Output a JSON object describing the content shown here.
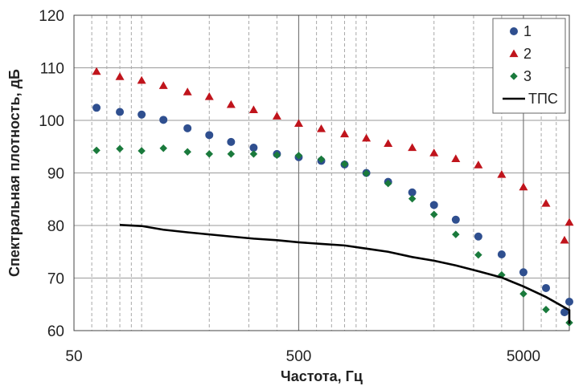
{
  "chart_data": {
    "type": "scatter",
    "title": "",
    "xlabel": "Частота, Гц",
    "ylabel": "Спектральная плотность, дБ",
    "xscale": "log",
    "xlim": [
      50,
      8000
    ],
    "ylim": [
      60,
      120
    ],
    "xticks": [
      50,
      500,
      5000
    ],
    "xtick_labels": [
      "50",
      "500",
      "5000"
    ],
    "yticks": [
      60,
      70,
      80,
      90,
      100,
      110,
      120
    ],
    "grid": "major and minor vertical (dashed minor), horizontal major",
    "legend_position": "top-right",
    "x": [
      63,
      80,
      100,
      125,
      160,
      200,
      250,
      315,
      400,
      500,
      630,
      800,
      1000,
      1250,
      1600,
      2000,
      2500,
      3150,
      4000,
      5000,
      6300,
      8000
    ],
    "series": [
      {
        "name": "1",
        "marker": "circle",
        "color": "#2f4f8f",
        "x": [
          63,
          80,
          100,
          125,
          160,
          200,
          250,
          315,
          400,
          500,
          630,
          800,
          1000,
          1250,
          1600,
          2000,
          2500,
          3150,
          4000,
          5000,
          6300,
          8000,
          10000
        ],
        "values": [
          102.4,
          101.6,
          101.1,
          100.1,
          98.5,
          97.2,
          95.9,
          94.8,
          93.6,
          93.0,
          92.3,
          91.6,
          90.0,
          88.3,
          86.3,
          83.9,
          81.1,
          77.9,
          74.5,
          71.1,
          68.1,
          65.5,
          63.5
        ]
      },
      {
        "name": "2",
        "marker": "triangle",
        "color": "#c0141c",
        "x": [
          63,
          80,
          100,
          125,
          160,
          200,
          250,
          315,
          400,
          500,
          630,
          800,
          1000,
          1250,
          1600,
          2000,
          2500,
          3150,
          4000,
          5000,
          6300,
          8000,
          10000
        ],
        "values": [
          109.3,
          108.3,
          107.6,
          106.6,
          105.4,
          104.5,
          103.0,
          102.0,
          100.8,
          99.4,
          98.4,
          97.4,
          96.6,
          95.6,
          94.8,
          93.8,
          92.7,
          91.5,
          89.7,
          87.3,
          84.2,
          80.6,
          77.2
        ]
      },
      {
        "name": "3",
        "marker": "diamond",
        "color": "#1a7a3c",
        "x": [
          63,
          80,
          100,
          125,
          160,
          200,
          250,
          315,
          400,
          500,
          630,
          800,
          1000,
          1250,
          1600,
          2000,
          2500,
          3150,
          4000,
          5000,
          6300,
          8000
        ],
        "values": [
          94.3,
          94.6,
          94.2,
          94.7,
          94.0,
          93.6,
          93.6,
          93.6,
          93.4,
          93.3,
          92.6,
          91.7,
          89.9,
          88.0,
          85.1,
          82.1,
          78.3,
          74.4,
          70.6,
          67.0,
          64.0,
          61.5
        ]
      },
      {
        "name": "ТПС",
        "marker": "line",
        "color": "#000000",
        "x": [
          80,
          100,
          125,
          160,
          200,
          250,
          315,
          400,
          500,
          630,
          800,
          1000,
          1250,
          1600,
          2000,
          2500,
          3150,
          4000,
          5000,
          6300,
          8000,
          10000
        ],
        "values": [
          80.1,
          79.9,
          79.2,
          78.7,
          78.3,
          77.9,
          77.5,
          77.2,
          76.8,
          76.5,
          76.2,
          75.6,
          75.0,
          74.0,
          73.3,
          72.4,
          71.3,
          70.1,
          68.4,
          66.4,
          63.9,
          61.3
        ]
      }
    ]
  }
}
